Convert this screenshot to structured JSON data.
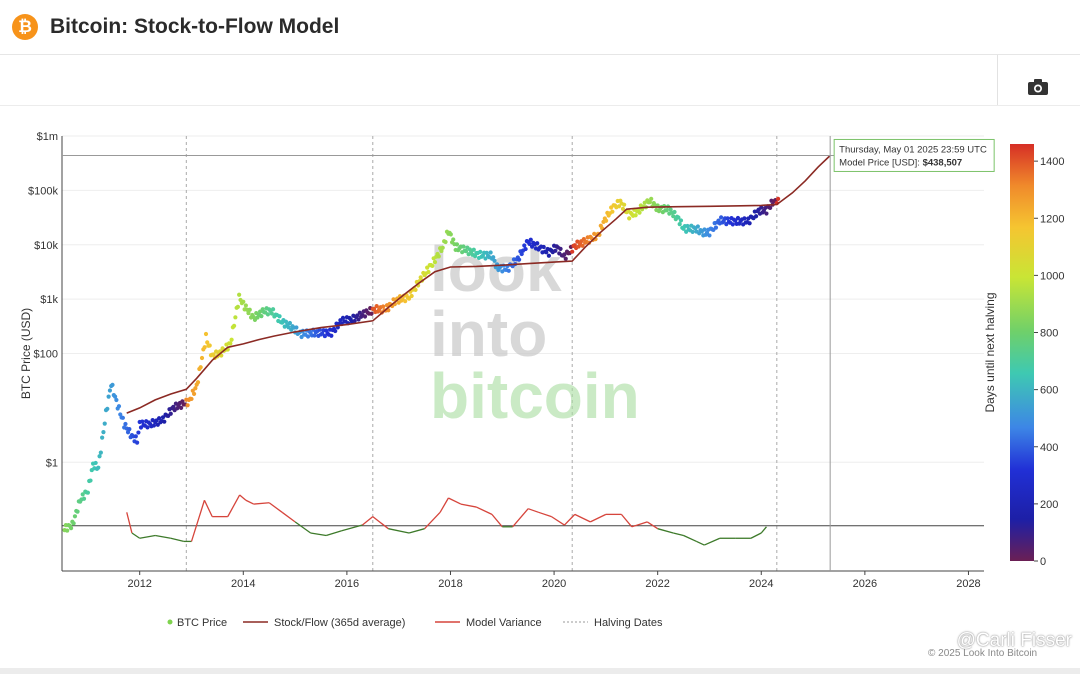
{
  "header": {
    "title": "Bitcoin: Stock-to-Flow Model",
    "logo_symbol": "₿"
  },
  "toolbar": {
    "camera_icon": "camera-icon"
  },
  "watermark": {
    "user": "@Carli Fisser",
    "copyright": "© 2025 Look Into Bitcoin",
    "logo_lines": [
      "look",
      "into",
      "bitcoin"
    ]
  },
  "colors": {
    "model_line": "#8b2a24",
    "variance_high": "#d6453c",
    "variance_low": "#3d7a2a",
    "tooltip_border": "#7cc36a"
  },
  "chart_data": {
    "type": "line",
    "title": "Bitcoin: Stock-to-Flow Model",
    "ylabel": "BTC Price (USD)",
    "yscale": "log",
    "ylim": [
      0.01,
      1000000
    ],
    "xlim": [
      2010.5,
      2028.3
    ],
    "y_ticks": [
      {
        "value": 1000000,
        "label": "$1m"
      },
      {
        "value": 100000,
        "label": "$100k"
      },
      {
        "value": 10000,
        "label": "$10k"
      },
      {
        "value": 1000,
        "label": "$1k"
      },
      {
        "value": 100,
        "label": "$100"
      },
      {
        "value": 1,
        "label": "$1"
      }
    ],
    "x_ticks": [
      {
        "value": 2012,
        "label": "2012"
      },
      {
        "value": 2014,
        "label": "2014"
      },
      {
        "value": 2016,
        "label": "2016"
      },
      {
        "value": 2018,
        "label": "2018"
      },
      {
        "value": 2020,
        "label": "2020"
      },
      {
        "value": 2022,
        "label": "2022"
      },
      {
        "value": 2024,
        "label": "2024"
      },
      {
        "value": 2026,
        "label": "2026"
      },
      {
        "value": 2028,
        "label": "2028"
      }
    ],
    "halving_dates": [
      2012.9,
      2016.5,
      2020.35,
      2024.3
    ],
    "colorbar": {
      "label": "Days until next halving",
      "min": 0,
      "max": 1460,
      "ticks": [
        0,
        200,
        400,
        600,
        800,
        1000,
        1200,
        1400
      ]
    },
    "series": [
      {
        "name": "BTC Price",
        "points": [
          [
            2010.55,
            0.06
          ],
          [
            2010.7,
            0.07
          ],
          [
            2010.85,
            0.2
          ],
          [
            2011.0,
            0.3
          ],
          [
            2011.1,
            0.9
          ],
          [
            2011.2,
            0.8
          ],
          [
            2011.35,
            8
          ],
          [
            2011.45,
            28
          ],
          [
            2011.55,
            13
          ],
          [
            2011.7,
            5
          ],
          [
            2011.85,
            3
          ],
          [
            2011.95,
            2.5
          ],
          [
            2012.0,
            5
          ],
          [
            2012.2,
            5
          ],
          [
            2012.45,
            6
          ],
          [
            2012.65,
            10
          ],
          [
            2012.85,
            12
          ],
          [
            2012.95,
            13
          ],
          [
            2013.1,
            25
          ],
          [
            2013.28,
            200
          ],
          [
            2013.4,
            90
          ],
          [
            2013.55,
            100
          ],
          [
            2013.75,
            150
          ],
          [
            2013.92,
            1100
          ],
          [
            2014.0,
            800
          ],
          [
            2014.2,
            450
          ],
          [
            2014.4,
            600
          ],
          [
            2014.55,
            600
          ],
          [
            2014.75,
            380
          ],
          [
            2014.95,
            300
          ],
          [
            2015.1,
            230
          ],
          [
            2015.4,
            240
          ],
          [
            2015.7,
            240
          ],
          [
            2015.9,
            400
          ],
          [
            2016.1,
            420
          ],
          [
            2016.35,
            550
          ],
          [
            2016.55,
            650
          ],
          [
            2016.75,
            650
          ],
          [
            2016.95,
            950
          ],
          [
            2017.2,
            1100
          ],
          [
            2017.45,
            2500
          ],
          [
            2017.65,
            4500
          ],
          [
            2017.85,
            9000
          ],
          [
            2017.96,
            18000
          ],
          [
            2018.1,
            9000
          ],
          [
            2018.3,
            8000
          ],
          [
            2018.55,
            6500
          ],
          [
            2018.8,
            6300
          ],
          [
            2018.9,
            3800
          ],
          [
            2019.1,
            3600
          ],
          [
            2019.3,
            5500
          ],
          [
            2019.5,
            11500
          ],
          [
            2019.7,
            9000
          ],
          [
            2019.9,
            7200
          ],
          [
            2020.05,
            9000
          ],
          [
            2020.2,
            6000
          ],
          [
            2020.4,
            9500
          ],
          [
            2020.6,
            11500
          ],
          [
            2020.85,
            15000
          ],
          [
            2020.98,
            29000
          ],
          [
            2021.15,
            50000
          ],
          [
            2021.28,
            60000
          ],
          [
            2021.45,
            35000
          ],
          [
            2021.6,
            40000
          ],
          [
            2021.85,
            65000
          ],
          [
            2022.0,
            46000
          ],
          [
            2022.2,
            45000
          ],
          [
            2022.4,
            30000
          ],
          [
            2022.5,
            20000
          ],
          [
            2022.75,
            19500
          ],
          [
            2022.88,
            16500
          ],
          [
            2023.0,
            17000
          ],
          [
            2023.2,
            28000
          ],
          [
            2023.45,
            27000
          ],
          [
            2023.75,
            27000
          ],
          [
            2023.95,
            42000
          ],
          [
            2024.1,
            43000
          ],
          [
            2024.22,
            60000
          ],
          [
            2024.3,
            65000
          ],
          [
            2024.35,
            57000
          ]
        ]
      },
      {
        "name": "Stock/Flow (365d average)",
        "points": [
          [
            2011.75,
            8
          ],
          [
            2012.0,
            10
          ],
          [
            2012.3,
            14
          ],
          [
            2012.6,
            18
          ],
          [
            2012.9,
            22
          ],
          [
            2013.1,
            35
          ],
          [
            2013.4,
            75
          ],
          [
            2013.7,
            130
          ],
          [
            2014.0,
            150
          ],
          [
            2014.3,
            180
          ],
          [
            2014.6,
            210
          ],
          [
            2015.0,
            250
          ],
          [
            2015.5,
            300
          ],
          [
            2016.0,
            340
          ],
          [
            2016.5,
            400
          ],
          [
            2016.8,
            700
          ],
          [
            2017.1,
            1200
          ],
          [
            2017.4,
            2000
          ],
          [
            2017.7,
            3200
          ],
          [
            2018.0,
            3900
          ],
          [
            2018.5,
            4000
          ],
          [
            2019.0,
            4200
          ],
          [
            2019.5,
            4500
          ],
          [
            2020.0,
            4800
          ],
          [
            2020.35,
            5000
          ],
          [
            2020.6,
            9000
          ],
          [
            2020.9,
            17000
          ],
          [
            2021.2,
            30000
          ],
          [
            2021.4,
            45000
          ],
          [
            2021.8,
            49000
          ],
          [
            2022.4,
            50000
          ],
          [
            2023.0,
            51000
          ],
          [
            2023.6,
            52000
          ],
          [
            2024.0,
            53000
          ],
          [
            2024.3,
            55000
          ],
          [
            2024.6,
            90000
          ],
          [
            2024.85,
            150000
          ],
          [
            2025.1,
            270000
          ],
          [
            2025.33,
            438507
          ]
        ]
      },
      {
        "name": "Model Variance",
        "points": [
          [
            2011.75,
            0.12
          ],
          [
            2011.85,
            0.05
          ],
          [
            2012.0,
            0.04
          ],
          [
            2012.3,
            0.045
          ],
          [
            2012.6,
            0.04
          ],
          [
            2012.85,
            0.035
          ],
          [
            2013.0,
            0.035
          ],
          [
            2013.25,
            0.2
          ],
          [
            2013.4,
            0.1
          ],
          [
            2013.7,
            0.1
          ],
          [
            2013.93,
            0.25
          ],
          [
            2014.05,
            0.2
          ],
          [
            2014.2,
            0.17
          ],
          [
            2014.5,
            0.18
          ],
          [
            2014.75,
            0.12
          ],
          [
            2015.0,
            0.08
          ],
          [
            2015.3,
            0.05
          ],
          [
            2015.6,
            0.045
          ],
          [
            2015.9,
            0.055
          ],
          [
            2016.3,
            0.07
          ],
          [
            2016.5,
            0.1
          ],
          [
            2016.8,
            0.06
          ],
          [
            2017.2,
            0.05
          ],
          [
            2017.5,
            0.06
          ],
          [
            2017.8,
            0.12
          ],
          [
            2017.96,
            0.22
          ],
          [
            2018.2,
            0.17
          ],
          [
            2018.5,
            0.15
          ],
          [
            2018.8,
            0.11
          ],
          [
            2019.0,
            0.065
          ],
          [
            2019.2,
            0.065
          ],
          [
            2019.5,
            0.14
          ],
          [
            2019.7,
            0.12
          ],
          [
            2019.95,
            0.1
          ],
          [
            2020.2,
            0.07
          ],
          [
            2020.4,
            0.11
          ],
          [
            2020.7,
            0.08
          ],
          [
            2021.0,
            0.11
          ],
          [
            2021.3,
            0.11
          ],
          [
            2021.5,
            0.065
          ],
          [
            2021.8,
            0.08
          ],
          [
            2022.0,
            0.06
          ],
          [
            2022.3,
            0.05
          ],
          [
            2022.5,
            0.045
          ],
          [
            2022.75,
            0.035
          ],
          [
            2022.9,
            0.03
          ],
          [
            2023.2,
            0.04
          ],
          [
            2023.5,
            0.04
          ],
          [
            2023.8,
            0.04
          ],
          [
            2024.0,
            0.05
          ],
          [
            2024.1,
            0.065
          ]
        ],
        "baseline": 0.068
      }
    ],
    "tooltip": {
      "date": "Thursday, May 01 2025 23:59 UTC",
      "label": "Model Price [USD]:",
      "value": "$438,507",
      "x": 2025.33,
      "y": 438507
    },
    "legend": [
      {
        "name": "BTC Price",
        "marker": "dot"
      },
      {
        "name": "Stock/Flow (365d average)",
        "marker": "line"
      },
      {
        "name": "Model Variance",
        "marker": "line"
      },
      {
        "name": "Halving Dates",
        "marker": "dashed"
      }
    ]
  }
}
